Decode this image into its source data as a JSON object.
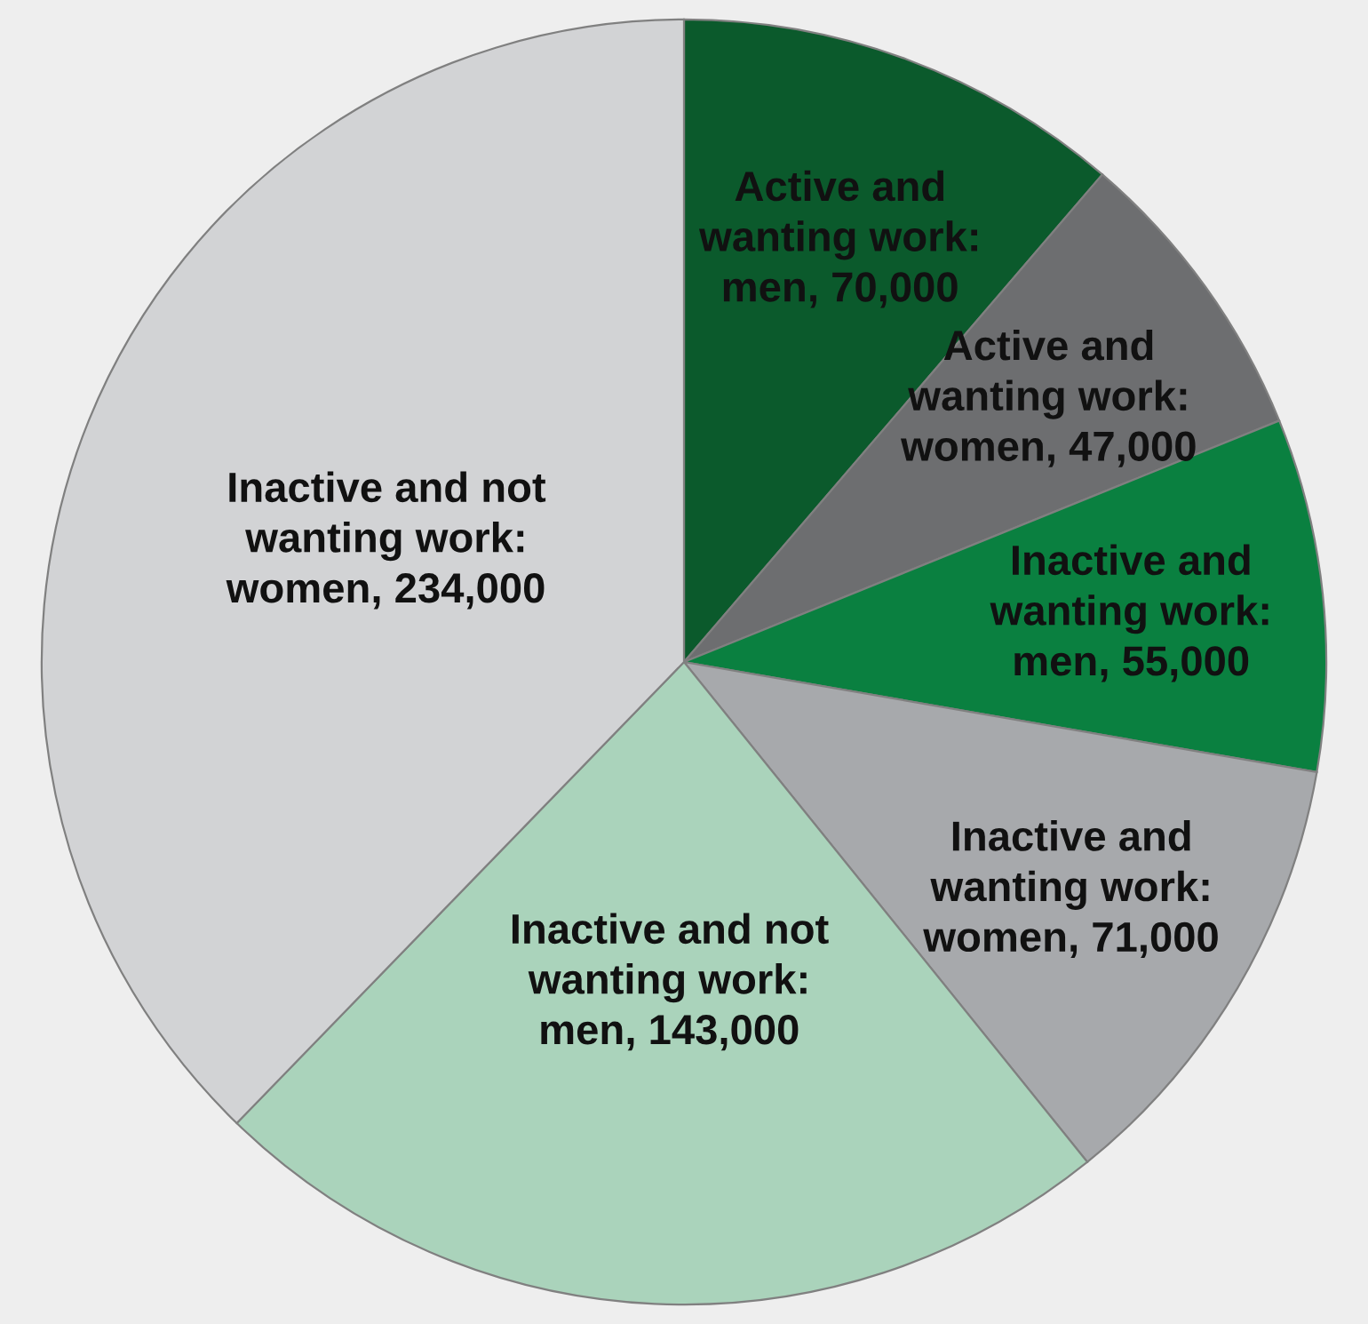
{
  "chart_data": {
    "type": "pie",
    "categories": [
      "Active and wanting work: men",
      "Active and wanting work: women",
      "Inactive and wanting work: men",
      "Inactive and wanting work: women",
      "Inactive and not wanting work: men",
      "Inactive and not wanting work: women"
    ],
    "values": [
      70000,
      47000,
      55000,
      71000,
      143000,
      234000
    ],
    "value_labels": [
      ", 70,000",
      ", 47,000",
      ", 55,000",
      ", 71,000",
      ", 143,000",
      ", 234,000"
    ],
    "colors": [
      "#0b5a2c",
      "#6d6e70",
      "#0a8040",
      "#a7a9ac",
      "#aad3bb",
      "#d2d3d5"
    ]
  }
}
